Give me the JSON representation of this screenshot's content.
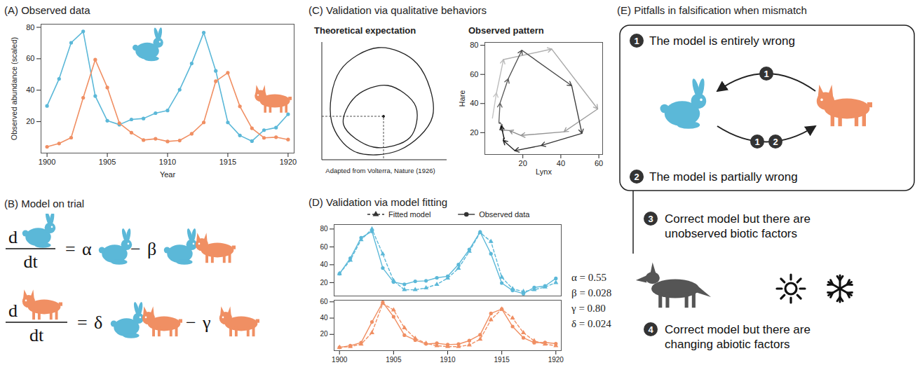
{
  "chart_data": [
    {
      "type": "line",
      "title": "(A) Observed data",
      "x_label": "Year",
      "y_label": "Observed abundance (scaled)",
      "x": [
        1900,
        1901,
        1902,
        1903,
        1904,
        1905,
        1906,
        1907,
        1908,
        1909,
        1910,
        1911,
        1912,
        1913,
        1914,
        1915,
        1916,
        1917,
        1918,
        1919,
        1920
      ],
      "xlim": [
        1899.5,
        1920.5
      ],
      "xticks": [
        1900,
        1905,
        1910,
        1915,
        1920
      ],
      "ylim": [
        0,
        82
      ],
      "yticks": [
        20,
        40,
        60,
        80
      ],
      "series": [
        {
          "color": "#5bb8d8",
          "marker": "circle",
          "values": [
            30,
            47.2,
            70.2,
            77.4,
            36.3,
            20.6,
            18.1,
            21.4,
            22,
            25.4,
            27.1,
            40.3,
            57,
            76.6,
            52.3,
            19.5,
            11.2,
            7.6,
            14.6,
            16.2,
            24.7
          ]
        },
        {
          "color": "#f08f63",
          "marker": "circle",
          "values": [
            4,
            6.1,
            9.8,
            35.2,
            59.4,
            41.7,
            19,
            13,
            8.3,
            9.1,
            7.4,
            8,
            12.3,
            19.5,
            45.7,
            51.1,
            29.7,
            15.8,
            9.7,
            10.1,
            8.6
          ]
        }
      ]
    },
    {
      "type": "phase",
      "title": "Observed pattern",
      "x_label": "Lynx",
      "y_label": "Hare",
      "marker": "arrow",
      "x": [
        4,
        6.1,
        9.8,
        35.2,
        59.4,
        41.7,
        19,
        13,
        8.3,
        9.1,
        7.4,
        8,
        12.3,
        19.5,
        45.7,
        51.1,
        29.7,
        15.8,
        9.7,
        10.1,
        8.6
      ],
      "y": [
        30,
        47.2,
        70.2,
        77.4,
        36.3,
        20.6,
        18.1,
        21.4,
        22,
        25.4,
        27.1,
        40.3,
        57,
        76.6,
        52.3,
        19.5,
        11.2,
        7.6,
        14.6,
        16.2,
        24.7
      ],
      "xlim": [
        0,
        62
      ],
      "xticks": [
        20,
        40,
        60
      ],
      "ylim": [
        5,
        82
      ],
      "yticks": [
        20,
        40,
        60,
        80
      ]
    },
    {
      "type": "line",
      "title": "(D) Validation via model fitting",
      "legend": "top",
      "x": [
        1900,
        1901,
        1902,
        1903,
        1904,
        1905,
        1906,
        1907,
        1908,
        1909,
        1910,
        1911,
        1912,
        1913,
        1914,
        1915,
        1916,
        1917,
        1918,
        1919,
        1920
      ],
      "xlim": [
        1899.5,
        1920.5
      ],
      "xticks": [
        1900,
        1905,
        1910,
        1915,
        1920
      ],
      "parameters": [
        "α = 0.55",
        "β = 0.028",
        "γ = 0.80",
        "δ = 0.024"
      ],
      "panels": [
        {
          "tick_labels": "y",
          "ylim": [
            5,
            85
          ],
          "yticks": [
            20,
            40,
            60,
            80
          ],
          "series": [
            {
              "name": "Fitted model",
              "color": "#5bb8d8",
              "marker": "triangle",
              "line_style": "dashed",
              "values": [
                30,
                45,
                68,
                80,
                52,
                22,
                12,
                12,
                14,
                18,
                25,
                36,
                55,
                76,
                66,
                26,
                13,
                10,
                12,
                15,
                20
              ]
            },
            {
              "name": "Observed data",
              "color": "#5bb8d8",
              "marker": "circle",
              "line_style": "solid",
              "values": [
                30,
                47.2,
                70.2,
                77.4,
                36.3,
                20.6,
                18.1,
                21.4,
                22,
                25.4,
                27.1,
                40.3,
                57,
                76.6,
                52.3,
                19.5,
                11.2,
                7.6,
                14.6,
                16.2,
                24.7
              ]
            }
          ]
        },
        {
          "ylim": [
            0,
            62
          ],
          "yticks": [
            20,
            40,
            60
          ],
          "series": [
            {
              "name": "Fitted model",
              "color": "#f08f63",
              "marker": "triangle",
              "line_style": "dashed",
              "values": [
                4,
                5,
                8,
                22,
                58,
                50,
                28,
                15,
                9,
                6,
                5,
                5,
                7,
                14,
                38,
                51,
                40,
                22,
                12,
                8,
                6
              ]
            },
            {
              "name": "Observed data",
              "color": "#f08f63",
              "marker": "circle",
              "line_style": "solid",
              "values": [
                4,
                6.1,
                9.8,
                35.2,
                59.4,
                41.7,
                19,
                13,
                8.3,
                9.1,
                7.4,
                8,
                12.3,
                19.5,
                45.7,
                51.1,
                29.7,
                15.8,
                9.7,
                10.1,
                8.6
              ]
            }
          ]
        }
      ]
    }
  ],
  "diagram": {
    "B": {
      "title": "(B) Model on trial",
      "equations": [
        {
          "numerator": [
            "d",
            {
              "icon": "hare"
            }
          ],
          "denominator": "dt",
          "rhs": [
            "=",
            "α",
            {
              "icon": "hare"
            },
            "−",
            "β",
            {
              "icon": "hare"
            },
            {
              "icon": "lynx"
            }
          ]
        },
        {
          "numerator": [
            "d",
            {
              "icon": "lynx"
            }
          ],
          "denominator": "dt",
          "rhs": [
            "=",
            "δ",
            {
              "icon": "hare"
            },
            {
              "icon": "lynx"
            },
            "−",
            "γ",
            {
              "icon": "lynx"
            }
          ]
        }
      ]
    },
    "C": {
      "title": "(C) Validation via qualitative behaviors",
      "left_title": "Theoretical expectation",
      "caption": "Adapted from Volterra, Nature (1926)"
    },
    "E": {
      "title": "(E) Pitfalls in falsification when mismatch",
      "items": [
        {
          "number": 1,
          "text": "The model is entirely wrong"
        },
        {
          "number": 2,
          "text": "The model is partially wrong"
        },
        {
          "number": 3,
          "text": "Correct model but there are unobserved biotic factors"
        },
        {
          "number": 4,
          "text": "Correct model but there are changing abiotic factors"
        }
      ],
      "arrow_badges": [
        [
          1
        ],
        [
          1,
          2
        ]
      ]
    }
  }
}
